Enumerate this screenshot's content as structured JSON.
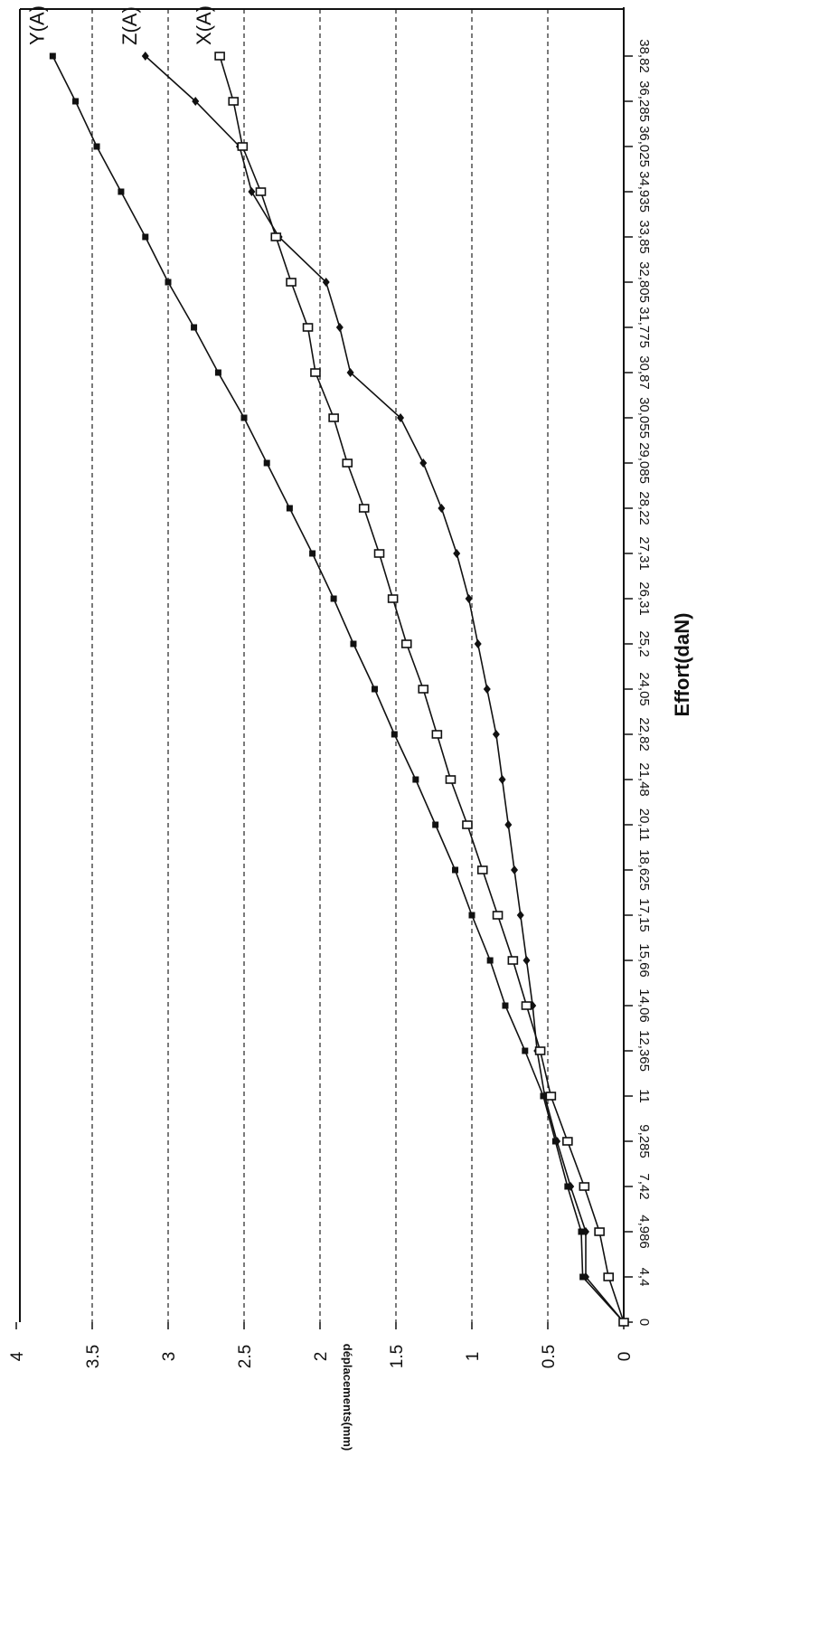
{
  "chart_data": {
    "type": "line",
    "title": "",
    "xlabel": "Effort(daN)",
    "ylabel": "déplacements(mm)",
    "x": [
      "0",
      "4,4",
      "4,986",
      "7,42",
      "9,285",
      "11",
      "12,365",
      "14,06",
      "15,66",
      "17,15",
      "18,625",
      "20,11",
      "21,48",
      "22,82",
      "24,05",
      "25,2",
      "26,31",
      "27,31",
      "28,22",
      "29,085",
      "30,055",
      "30,87",
      "31,775",
      "32,805",
      "33,85",
      "34,935",
      "36,025",
      "36,285",
      "38,82"
    ],
    "ylim": [
      0,
      4
    ],
    "yticks": [
      "0",
      "0.5",
      "1",
      "1.5",
      "2",
      "2.5",
      "3",
      "3.5",
      "4"
    ],
    "grid": true,
    "series": [
      {
        "name": "Y(A)",
        "marker": "filled-square",
        "values": [
          0,
          0.27,
          0.28,
          0.37,
          0.45,
          0.53,
          0.65,
          0.78,
          0.88,
          1.0,
          1.11,
          1.24,
          1.37,
          1.51,
          1.64,
          1.78,
          1.91,
          2.05,
          2.2,
          2.35,
          2.5,
          2.67,
          2.83,
          3.0,
          3.15,
          3.31,
          3.47,
          3.61,
          3.76
        ]
      },
      {
        "name": "Z(A)",
        "marker": "filled-diamond",
        "values": [
          0,
          0.25,
          0.25,
          0.35,
          0.44,
          0.52,
          0.57,
          0.6,
          0.64,
          0.68,
          0.72,
          0.76,
          0.8,
          0.84,
          0.9,
          0.96,
          1.02,
          1.1,
          1.2,
          1.32,
          1.47,
          1.8,
          1.87,
          1.96,
          2.27,
          2.45,
          2.53,
          2.82,
          3.15
        ]
      },
      {
        "name": "X(A)",
        "marker": "open-square",
        "values": [
          0,
          0.1,
          0.16,
          0.26,
          0.37,
          0.48,
          0.55,
          0.64,
          0.73,
          0.83,
          0.93,
          1.03,
          1.14,
          1.23,
          1.32,
          1.43,
          1.52,
          1.61,
          1.71,
          1.82,
          1.91,
          2.03,
          2.08,
          2.19,
          2.29,
          2.39,
          2.51,
          2.57,
          2.66
        ]
      }
    ]
  }
}
